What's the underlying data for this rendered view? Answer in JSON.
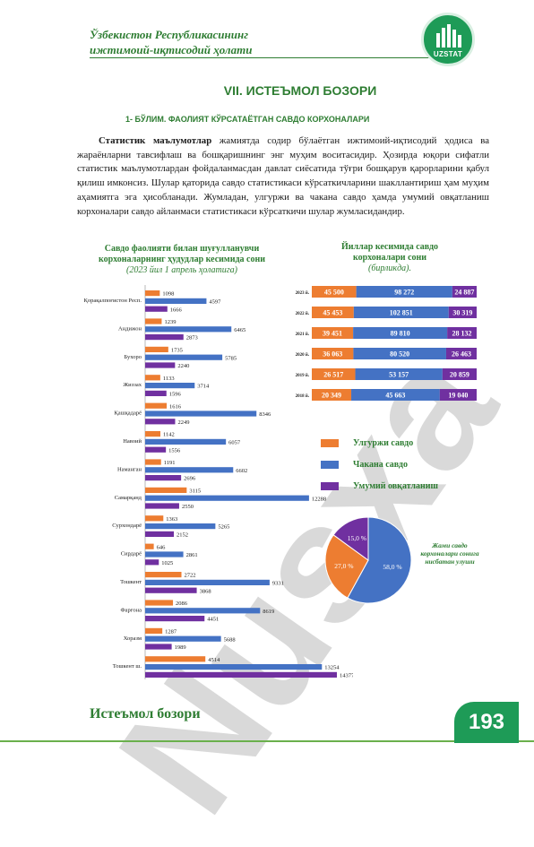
{
  "header": {
    "title_line1": "Ўзбекистон Республикасининг",
    "title_line2": "ижтимоий-иқтисодий ҳолати",
    "logo_text": "UZSTAT"
  },
  "watermark": "Nusxa",
  "chapter_title": "VII. ИСТЕЪМОЛ БОЗОРИ",
  "section_title": "1-  БЎЛИМ. ФАОЛИЯТ КЎРСАТАЁТГАН САВДО КОРХОНАЛАРИ",
  "paragraph": {
    "bold_lead": "Статистик маълумотлар",
    "body": " жамиятда содир бўлаётган ижтимоий-иқтисодий ҳодиса ва жараёнларни тавсифлаш ва бошқаришнинг энг муҳим воситасидир. Ҳозирда юқори сифатли статистик маълумотлардан фойдаланмасдан давлат сиёсатида тўғри бошқарув қарорларини қабул қилиш имконсиз. Шулар қаторида савдо статистикаси кўрсаткичларини шакллантириш ҳам муҳим аҳамиятга эга ҳисобланади. Жумладан, улгуржи ва чакана савдо ҳамда умумий овқатланиш корхоналари савдо айланмаси статистикаси кўрсаткичи шулар жумласидандир."
  },
  "left_chart_title": {
    "line1": "Савдо фаолияти билан шуғулланувчи",
    "line2": "корхоналарнинг ҳудудлар кесимида сони",
    "line3": "(2023 йил 1 апрель ҳолатига)"
  },
  "right_chart_title": {
    "line1": "Йиллар кесимида савдо",
    "line2": "корхоналари  сони",
    "line3": "(бирликда)."
  },
  "legend": [
    {
      "label": "Улгуржи савдо",
      "color": "#ed7d31"
    },
    {
      "label": "Чакана савдо",
      "color": "#4472c4"
    },
    {
      "label": "Умумий овқатланиш",
      "color": "#7030a0"
    }
  ],
  "pie_caption": {
    "line1": "Жами савдо",
    "line2": "корхоналари сонига",
    "line3": "нисбатан улуши"
  },
  "chart_data": [
    {
      "type": "bar",
      "orientation": "horizontal",
      "categories": [
        "Қорақалпоғистон Респ.",
        "Андижон",
        "Бухоро",
        "Жиззах",
        "Қашқадарё",
        "Навоий",
        "Наманган",
        "Самарқанд",
        "Сурхондарё",
        "Сирдарё",
        "Тошкент",
        "Фарғона",
        "Хоразм",
        "Тошкент ш."
      ],
      "series": [
        {
          "name": "Улгуржи савдо",
          "color": "#ed7d31",
          "values": [
            1098,
            1239,
            1735,
            1133,
            1616,
            1142,
            1191,
            3115,
            1363,
            646,
            2722,
            2086,
            1287,
            4514
          ]
        },
        {
          "name": "Чакана савдо",
          "color": "#4472c4",
          "values": [
            4597,
            6465,
            5785,
            3714,
            8346,
            6057,
            6602,
            12288,
            5265,
            2861,
            9331,
            8619,
            5688,
            13254
          ]
        },
        {
          "name": "Умумий овқатланиш",
          "color": "#7030a0",
          "values": [
            1666,
            2873,
            2240,
            1596,
            2249,
            1556,
            2696,
            2550,
            2152,
            1025,
            3868,
            4451,
            1989,
            14377
          ]
        }
      ],
      "xlim": [
        0,
        14377
      ]
    },
    {
      "type": "bar",
      "orientation": "horizontal",
      "stacked": true,
      "categories": [
        "2023 й.",
        "2022 й.",
        "2021 й.",
        "2020 й.",
        "2019 й.",
        "2018 й."
      ],
      "series": [
        {
          "name": "Улгуржи савдо",
          "color": "#ed7d31",
          "values": [
            "45 500",
            "45 453",
            "39 451",
            "36 063",
            "26 517",
            "20 349"
          ]
        },
        {
          "name": "Чакана савдо",
          "color": "#4472c4",
          "values": [
            "98 272",
            "102 851",
            "89 810",
            "80 520",
            "53 157",
            "45 663"
          ]
        },
        {
          "name": "Умумий овқатланиш",
          "color": "#7030a0",
          "values": [
            "24 887",
            "30 319",
            "28 132",
            "26 463",
            "20 859",
            "19 040"
          ]
        }
      ]
    },
    {
      "type": "pie",
      "slices": [
        {
          "label": "58,0 %",
          "value": 58.0,
          "color": "#4472c4"
        },
        {
          "label": "27,0 %",
          "value": 27.0,
          "color": "#ed7d31"
        },
        {
          "label": "15,0 %",
          "value": 15.0,
          "color": "#7030a0"
        }
      ]
    }
  ],
  "footer": {
    "title": "Истеъмол бозори",
    "page_number": "193"
  }
}
